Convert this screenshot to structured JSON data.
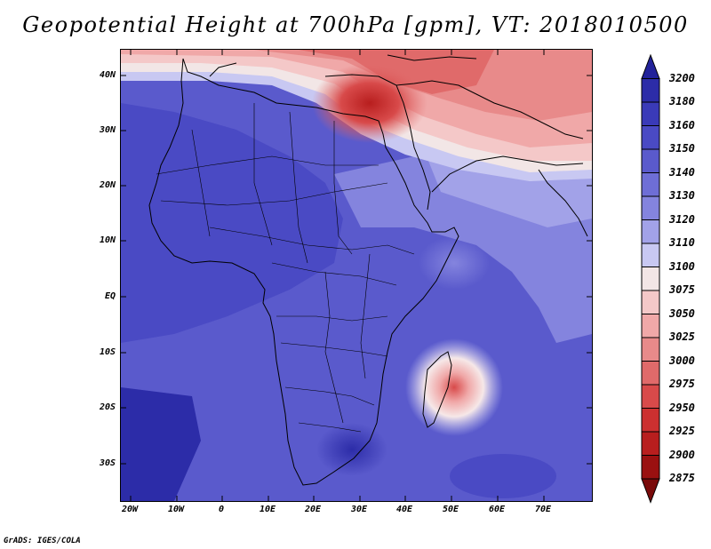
{
  "title": "Geopotential Height at 700hPa [gpm], VT: 2018010500",
  "footer": "GrADS: IGES/COLA",
  "map": {
    "region": "Africa",
    "variable": "Geopotential Height",
    "level": "700hPa",
    "units": "gpm",
    "valid_time": "2018010500",
    "lat_labels": [
      "40N",
      "30N",
      "20N",
      "10N",
      "EQ",
      "10S",
      "20S",
      "30S"
    ],
    "lon_labels": [
      "20W",
      "10W",
      "0",
      "10E",
      "20E",
      "30E",
      "40E",
      "50E",
      "60E",
      "70E"
    ]
  },
  "colorbar": {
    "labels": [
      "3200",
      "3180",
      "3160",
      "3150",
      "3140",
      "3130",
      "3120",
      "3110",
      "3100",
      "3075",
      "3050",
      "3025",
      "3000",
      "2975",
      "2950",
      "2925",
      "2900",
      "2875"
    ],
    "colors": [
      "#22229a",
      "#2c2ca8",
      "#3a3ab8",
      "#4a4ac4",
      "#5a5acc",
      "#6e6ed6",
      "#8484de",
      "#a2a2e8",
      "#c8c8f2",
      "#f2e6e6",
      "#f4c8c8",
      "#f0a8a8",
      "#e88a8a",
      "#e06a6a",
      "#d84a4a",
      "#cc3030",
      "#b81e1e",
      "#9a1010",
      "#7a0a0a"
    ]
  }
}
